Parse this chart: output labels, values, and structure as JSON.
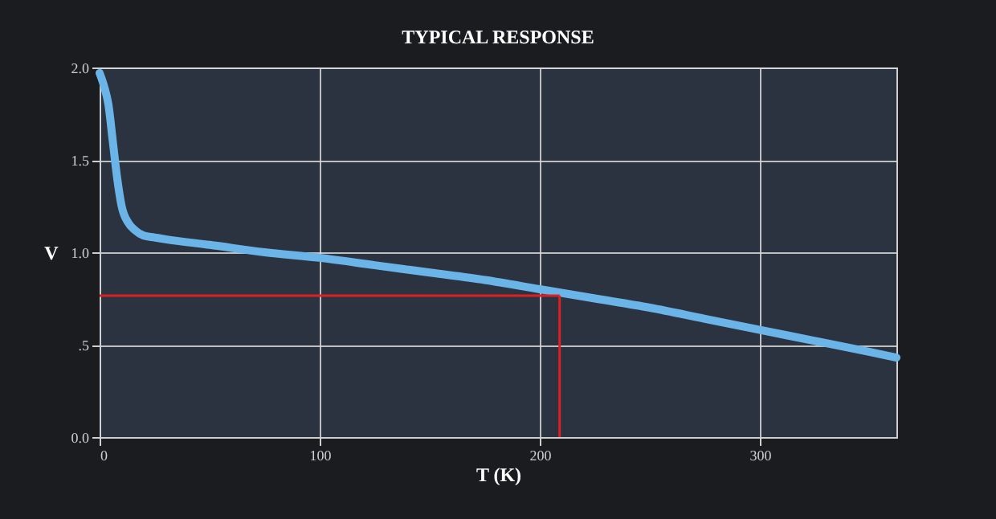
{
  "chart_data": {
    "type": "line",
    "title": "TYPICAL RESPONSE",
    "xlabel": "T (K)",
    "ylabel": "V",
    "x": [
      0,
      2,
      4,
      6,
      8,
      10,
      13,
      16,
      20,
      25,
      30,
      50,
      75,
      100,
      125,
      150,
      175,
      200,
      225,
      250,
      275,
      300,
      325,
      350,
      362
    ],
    "series": [
      {
        "color": "#6ab4e8",
        "values": [
          1.97,
          1.9,
          1.8,
          1.6,
          1.4,
          1.25,
          1.16,
          1.12,
          1.09,
          1.08,
          1.07,
          1.04,
          1.0,
          0.97,
          0.93,
          0.89,
          0.85,
          0.8,
          0.75,
          0.7,
          0.64,
          0.58,
          0.52,
          0.46,
          0.43
        ]
      }
    ],
    "xlim": [
      0,
      362
    ],
    "xticks": [
      0,
      100,
      200,
      300
    ],
    "ylim": [
      0,
      2
    ],
    "yticks": [
      {
        "value": 0,
        "label": "0.0"
      },
      {
        "value": 0.5,
        "label": ".5"
      },
      {
        "value": 1,
        "label": "1.0"
      },
      {
        "value": 1.5,
        "label": "1.5"
      },
      {
        "value": 2,
        "label": "2.0"
      }
    ],
    "ref_lines": [
      {
        "axis": "y",
        "value": 0.765,
        "color": "#e02020"
      },
      {
        "axis": "x",
        "value": 209,
        "color": "#e02020"
      }
    ],
    "grid": true,
    "marker": "none",
    "line_style": "solid"
  }
}
